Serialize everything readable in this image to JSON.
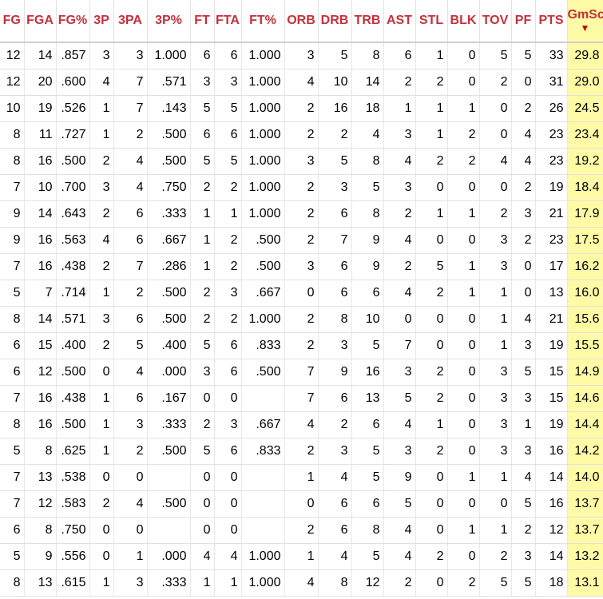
{
  "table": {
    "columns": [
      "FG",
      "FGA",
      "FG%",
      "3P",
      "3PA",
      "3P%",
      "FT",
      "FTA",
      "FT%",
      "ORB",
      "DRB",
      "TRB",
      "AST",
      "STL",
      "BLK",
      "TOV",
      "PF",
      "PTS",
      "GmSc"
    ],
    "sorted_column": "GmSc",
    "sort_indicator": "▼",
    "rows": [
      [
        "12",
        "14",
        ".857",
        "3",
        "3",
        "1.000",
        "6",
        "6",
        "1.000",
        "3",
        "5",
        "8",
        "6",
        "1",
        "0",
        "5",
        "5",
        "33",
        "29.8"
      ],
      [
        "12",
        "20",
        ".600",
        "4",
        "7",
        ".571",
        "3",
        "3",
        "1.000",
        "4",
        "10",
        "14",
        "2",
        "2",
        "0",
        "2",
        "0",
        "31",
        "29.0"
      ],
      [
        "10",
        "19",
        ".526",
        "1",
        "7",
        ".143",
        "5",
        "5",
        "1.000",
        "2",
        "16",
        "18",
        "1",
        "1",
        "1",
        "0",
        "2",
        "26",
        "24.5"
      ],
      [
        "8",
        "11",
        ".727",
        "1",
        "2",
        ".500",
        "6",
        "6",
        "1.000",
        "2",
        "2",
        "4",
        "3",
        "1",
        "2",
        "0",
        "4",
        "23",
        "23.4"
      ],
      [
        "8",
        "16",
        ".500",
        "2",
        "4",
        ".500",
        "5",
        "5",
        "1.000",
        "3",
        "5",
        "8",
        "4",
        "2",
        "2",
        "4",
        "4",
        "23",
        "19.2"
      ],
      [
        "7",
        "10",
        ".700",
        "3",
        "4",
        ".750",
        "2",
        "2",
        "1.000",
        "2",
        "3",
        "5",
        "3",
        "0",
        "0",
        "0",
        "2",
        "19",
        "18.4"
      ],
      [
        "9",
        "14",
        ".643",
        "2",
        "6",
        ".333",
        "1",
        "1",
        "1.000",
        "2",
        "6",
        "8",
        "2",
        "1",
        "1",
        "2",
        "3",
        "21",
        "17.9"
      ],
      [
        "9",
        "16",
        ".563",
        "4",
        "6",
        ".667",
        "1",
        "2",
        ".500",
        "2",
        "7",
        "9",
        "4",
        "0",
        "0",
        "3",
        "2",
        "23",
        "17.5"
      ],
      [
        "7",
        "16",
        ".438",
        "2",
        "7",
        ".286",
        "1",
        "2",
        ".500",
        "3",
        "6",
        "9",
        "2",
        "5",
        "1",
        "3",
        "0",
        "17",
        "16.2"
      ],
      [
        "5",
        "7",
        ".714",
        "1",
        "2",
        ".500",
        "2",
        "3",
        ".667",
        "0",
        "6",
        "6",
        "4",
        "2",
        "1",
        "1",
        "0",
        "13",
        "16.0"
      ],
      [
        "8",
        "14",
        ".571",
        "3",
        "6",
        ".500",
        "2",
        "2",
        "1.000",
        "2",
        "8",
        "10",
        "0",
        "0",
        "0",
        "1",
        "4",
        "21",
        "15.6"
      ],
      [
        "6",
        "15",
        ".400",
        "2",
        "5",
        ".400",
        "5",
        "6",
        ".833",
        "2",
        "3",
        "5",
        "7",
        "0",
        "0",
        "1",
        "3",
        "19",
        "15.5"
      ],
      [
        "6",
        "12",
        ".500",
        "0",
        "4",
        ".000",
        "3",
        "6",
        ".500",
        "7",
        "9",
        "16",
        "3",
        "2",
        "0",
        "3",
        "5",
        "15",
        "14.9"
      ],
      [
        "7",
        "16",
        ".438",
        "1",
        "6",
        ".167",
        "0",
        "0",
        "",
        "7",
        "6",
        "13",
        "5",
        "2",
        "0",
        "3",
        "3",
        "15",
        "14.6"
      ],
      [
        "8",
        "16",
        ".500",
        "1",
        "3",
        ".333",
        "2",
        "3",
        ".667",
        "4",
        "2",
        "6",
        "4",
        "1",
        "0",
        "3",
        "1",
        "19",
        "14.4"
      ],
      [
        "5",
        "8",
        ".625",
        "1",
        "2",
        ".500",
        "5",
        "6",
        ".833",
        "2",
        "3",
        "5",
        "3",
        "2",
        "0",
        "3",
        "3",
        "16",
        "14.2"
      ],
      [
        "7",
        "13",
        ".538",
        "0",
        "0",
        "",
        "0",
        "0",
        "",
        "1",
        "4",
        "5",
        "9",
        "0",
        "1",
        "1",
        "4",
        "14",
        "14.0"
      ],
      [
        "7",
        "12",
        ".583",
        "2",
        "4",
        ".500",
        "0",
        "0",
        "",
        "0",
        "6",
        "6",
        "5",
        "0",
        "0",
        "0",
        "5",
        "16",
        "13.7"
      ],
      [
        "6",
        "8",
        ".750",
        "0",
        "0",
        "",
        "0",
        "0",
        "",
        "2",
        "6",
        "8",
        "4",
        "0",
        "1",
        "1",
        "2",
        "12",
        "13.7"
      ],
      [
        "5",
        "9",
        ".556",
        "0",
        "1",
        ".000",
        "4",
        "4",
        "1.000",
        "1",
        "4",
        "5",
        "4",
        "2",
        "0",
        "2",
        "3",
        "14",
        "13.2"
      ],
      [
        "8",
        "13",
        ".615",
        "1",
        "3",
        ".333",
        "1",
        "1",
        "1.000",
        "4",
        "8",
        "12",
        "2",
        "0",
        "2",
        "5",
        "5",
        "18",
        "13.1"
      ]
    ]
  },
  "colors": {
    "header_text": "#c4313c",
    "sorted_column_bg": "#fffaa6",
    "sort_arrow": "#c4000f"
  }
}
